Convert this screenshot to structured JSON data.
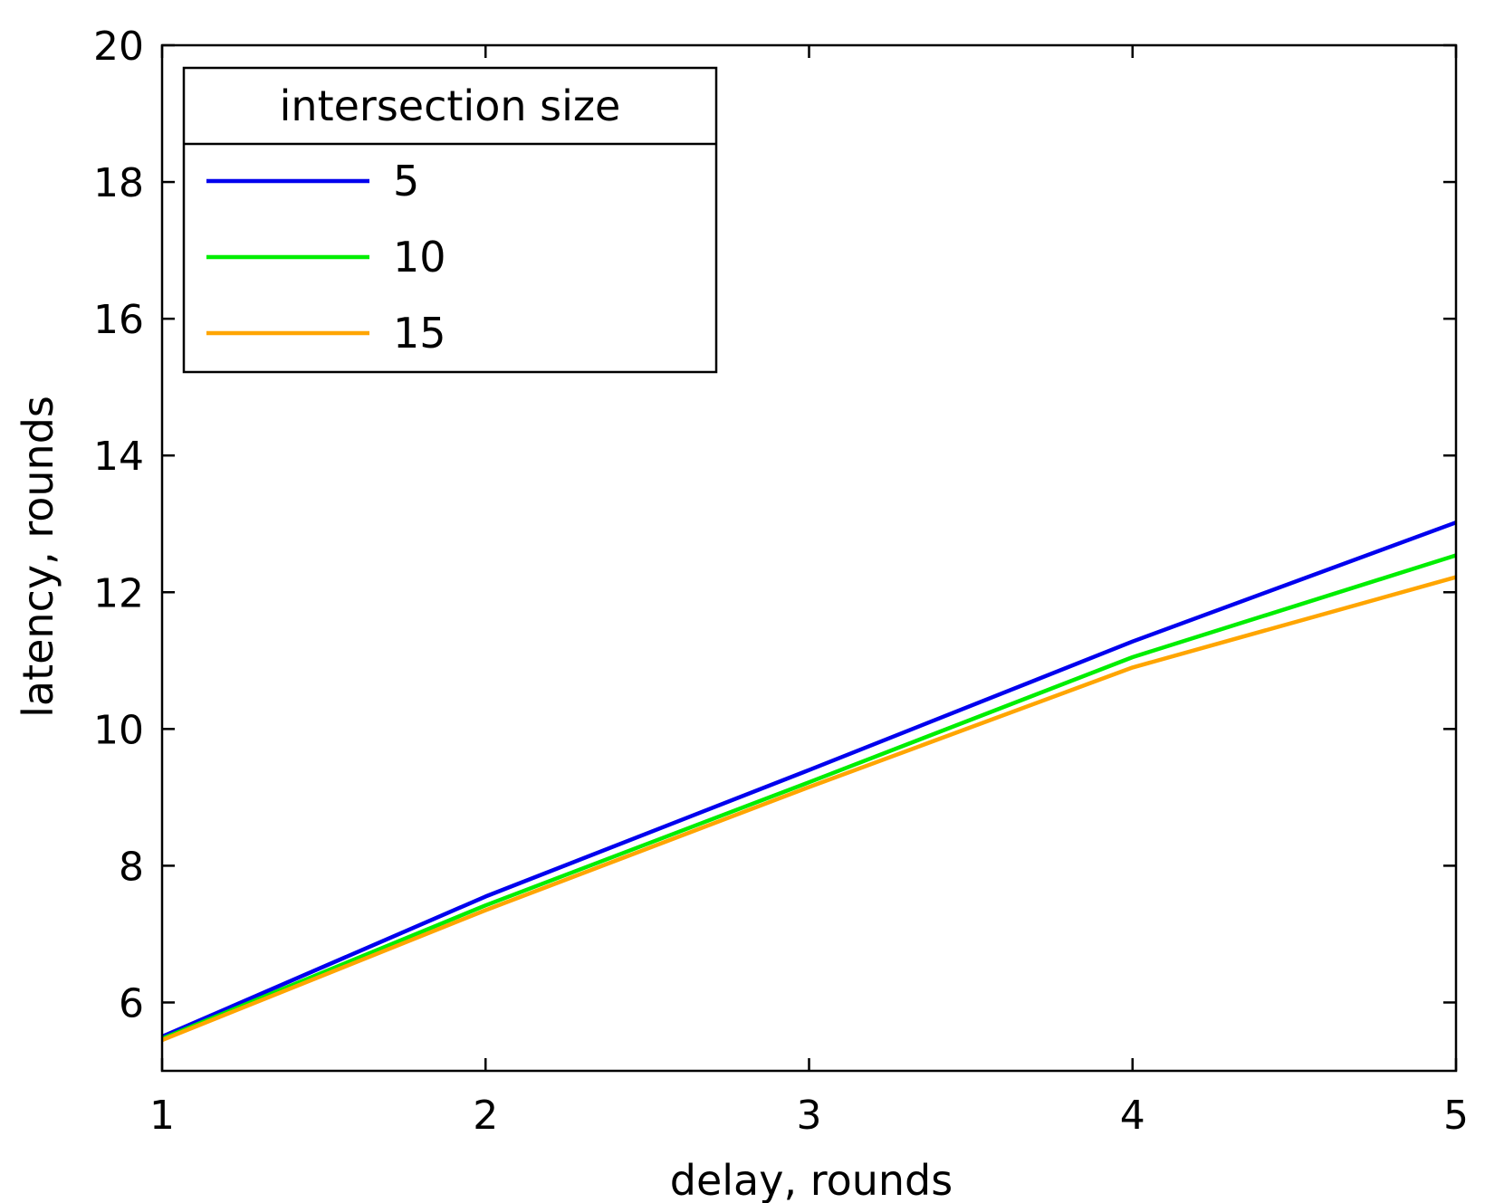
{
  "chart_data": {
    "type": "line",
    "xlabel": "delay, rounds",
    "ylabel": "latency, rounds",
    "xlim": [
      1,
      5
    ],
    "ylim": [
      5,
      20
    ],
    "xticks": [
      1,
      2,
      3,
      4,
      5
    ],
    "yticks": [
      6,
      8,
      10,
      12,
      14,
      16,
      18,
      20
    ],
    "grid": false,
    "legend": {
      "title": "intersection size",
      "position": "top-left"
    },
    "x": [
      1,
      2,
      3,
      4,
      5
    ],
    "series": [
      {
        "name": "5",
        "color": "#0000ee",
        "values": [
          5.5,
          7.55,
          9.4,
          11.28,
          13.02
        ]
      },
      {
        "name": "10",
        "color": "#00ee00",
        "values": [
          5.47,
          7.42,
          9.22,
          11.05,
          12.54
        ]
      },
      {
        "name": "15",
        "color": "#ffa500",
        "values": [
          5.45,
          7.35,
          9.15,
          10.9,
          12.22
        ]
      }
    ]
  }
}
